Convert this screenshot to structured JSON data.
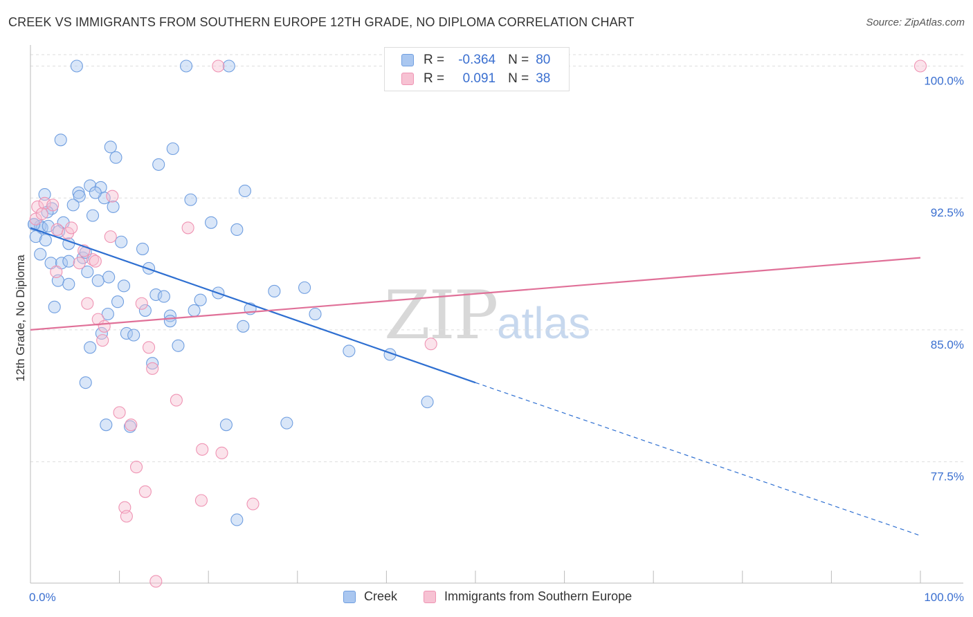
{
  "header": {
    "title": "CREEK VS IMMIGRANTS FROM SOUTHERN EUROPE 12TH GRADE, NO DIPLOMA CORRELATION CHART",
    "source": "Source: ZipAtlas.com"
  },
  "watermark": {
    "zip": "ZIP",
    "atlas": "atlas"
  },
  "legend": {
    "rows": [
      {
        "r_label": "R =",
        "r_value": "-0.364",
        "n_label": "N =",
        "n_value": "80"
      },
      {
        "r_label": "R =",
        "r_value": "0.091",
        "n_label": "N =",
        "n_value": "38"
      }
    ]
  },
  "bottom_legend": {
    "series1": "Creek",
    "series2": "Immigrants from Southern Europe"
  },
  "colors": {
    "creek_fill": "#aac7f0",
    "creek_stroke": "#6f9ee0",
    "creek_line": "#2e6fd1",
    "imm_fill": "#f7c2d3",
    "imm_stroke": "#ef93b3",
    "imm_line": "#e07098",
    "tick_label": "#3a6fd0",
    "grid": "#dddddd"
  },
  "chart_data": {
    "type": "scatter",
    "title": "CREEK VS IMMIGRANTS FROM SOUTHERN EUROPE 12TH GRADE, NO DIPLOMA CORRELATION CHART",
    "xlabel": "",
    "ylabel": "12th Grade, No Diploma",
    "xlim": [
      0,
      100
    ],
    "ylim": [
      70.6,
      101.2
    ],
    "x_tick_labels": [
      "0.0%",
      "100.0%"
    ],
    "y_ticks": [
      77.5,
      85.0,
      92.5,
      100.0
    ],
    "y_tick_labels": [
      "77.5%",
      "85.0%",
      "92.5%",
      "100.0%"
    ],
    "grid": true,
    "series": [
      {
        "name": "Creek",
        "points": [
          [
            5.2,
            100
          ],
          [
            17.5,
            100
          ],
          [
            22.3,
            100
          ],
          [
            3.4,
            95.8
          ],
          [
            9.0,
            95.4
          ],
          [
            9.6,
            94.8
          ],
          [
            14.4,
            94.4
          ],
          [
            16.0,
            95.3
          ],
          [
            1.6,
            92.7
          ],
          [
            5.4,
            92.8
          ],
          [
            6.7,
            93.2
          ],
          [
            7.9,
            93.1
          ],
          [
            8.3,
            92.5
          ],
          [
            9.3,
            92.0
          ],
          [
            7.3,
            92.8
          ],
          [
            5.5,
            92.6
          ],
          [
            2.4,
            91.9
          ],
          [
            1.9,
            91.7
          ],
          [
            4.8,
            92.1
          ],
          [
            7.0,
            91.5
          ],
          [
            18.0,
            92.4
          ],
          [
            24.1,
            92.9
          ],
          [
            0.4,
            91.0
          ],
          [
            1.1,
            90.9
          ],
          [
            1.3,
            90.8
          ],
          [
            3.7,
            91.1
          ],
          [
            0.6,
            90.3
          ],
          [
            1.7,
            90.1
          ],
          [
            20.3,
            91.1
          ],
          [
            23.2,
            90.7
          ],
          [
            4.3,
            89.9
          ],
          [
            10.2,
            90.0
          ],
          [
            1.1,
            89.3
          ],
          [
            2.3,
            88.8
          ],
          [
            3.5,
            88.8
          ],
          [
            4.3,
            88.9
          ],
          [
            5.9,
            89.1
          ],
          [
            6.2,
            89.4
          ],
          [
            12.6,
            89.6
          ],
          [
            6.4,
            88.3
          ],
          [
            7.6,
            87.8
          ],
          [
            8.8,
            88.0
          ],
          [
            13.3,
            88.5
          ],
          [
            3.1,
            87.8
          ],
          [
            4.3,
            87.6
          ],
          [
            10.5,
            87.5
          ],
          [
            27.4,
            87.2
          ],
          [
            30.8,
            87.4
          ],
          [
            14.1,
            87.0
          ],
          [
            15.0,
            86.9
          ],
          [
            19.1,
            86.7
          ],
          [
            21.1,
            87.1
          ],
          [
            9.8,
            86.6
          ],
          [
            2.7,
            86.3
          ],
          [
            12.9,
            86.1
          ],
          [
            18.4,
            86.1
          ],
          [
            8.7,
            85.9
          ],
          [
            15.7,
            85.8
          ],
          [
            24.7,
            86.2
          ],
          [
            32.0,
            85.9
          ],
          [
            15.7,
            85.5
          ],
          [
            23.9,
            85.2
          ],
          [
            8.0,
            84.8
          ],
          [
            10.8,
            84.8
          ],
          [
            11.6,
            84.7
          ],
          [
            16.6,
            84.1
          ],
          [
            6.7,
            84.0
          ],
          [
            35.8,
            83.8
          ],
          [
            40.4,
            83.6
          ],
          [
            13.7,
            83.1
          ],
          [
            6.2,
            82.0
          ],
          [
            44.6,
            80.9
          ],
          [
            8.5,
            79.6
          ],
          [
            11.2,
            79.5
          ],
          [
            22.0,
            79.6
          ],
          [
            28.8,
            79.7
          ],
          [
            23.2,
            74.2
          ],
          [
            0.4,
            91.0
          ],
          [
            2.0,
            90.9
          ],
          [
            3.2,
            90.6
          ]
        ]
      },
      {
        "name": "Immigrants from Southern Europe",
        "points": [
          [
            21.1,
            100
          ],
          [
            100,
            100
          ],
          [
            0.8,
            92.0
          ],
          [
            1.6,
            92.2
          ],
          [
            2.5,
            92.1
          ],
          [
            9.2,
            92.6
          ],
          [
            0.6,
            91.3
          ],
          [
            3.0,
            90.7
          ],
          [
            4.2,
            90.5
          ],
          [
            4.6,
            90.8
          ],
          [
            17.7,
            90.8
          ],
          [
            9.0,
            90.3
          ],
          [
            7.0,
            89.0
          ],
          [
            5.5,
            88.8
          ],
          [
            7.3,
            88.9
          ],
          [
            2.9,
            88.3
          ],
          [
            6.4,
            86.5
          ],
          [
            12.5,
            86.5
          ],
          [
            7.6,
            85.6
          ],
          [
            8.3,
            85.2
          ],
          [
            8.1,
            84.4
          ],
          [
            13.3,
            84.0
          ],
          [
            13.7,
            82.8
          ],
          [
            45.0,
            84.2
          ],
          [
            16.4,
            81.0
          ],
          [
            10.0,
            80.3
          ],
          [
            11.3,
            79.6
          ],
          [
            19.3,
            78.2
          ],
          [
            21.5,
            78.0
          ],
          [
            11.9,
            77.2
          ],
          [
            12.9,
            75.8
          ],
          [
            10.6,
            74.9
          ],
          [
            10.8,
            74.4
          ],
          [
            19.2,
            75.3
          ],
          [
            25.0,
            75.1
          ],
          [
            14.1,
            70.7
          ],
          [
            1.3,
            91.6
          ],
          [
            6.0,
            89.5
          ]
        ]
      }
    ],
    "trend_lines": [
      {
        "series": "Creek",
        "from": [
          0,
          90.8
        ],
        "to": [
          50,
          82.0
        ],
        "dashed_to": [
          100,
          73.3
        ]
      },
      {
        "series": "Immigrants from Southern Europe",
        "from": [
          0,
          85.0
        ],
        "to": [
          100,
          89.1
        ]
      }
    ]
  }
}
